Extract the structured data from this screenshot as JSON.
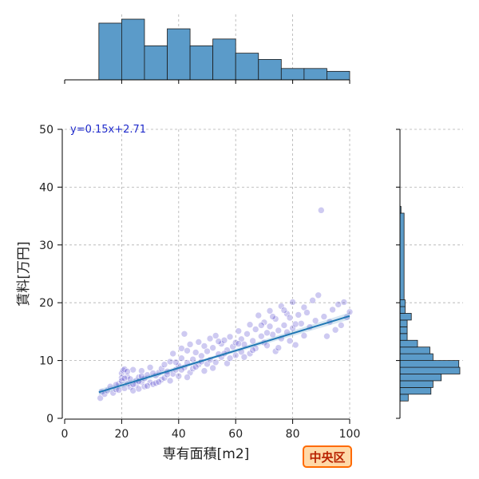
{
  "chart_data": {
    "type": "scatter",
    "title": "",
    "xlabel": "専有面積[m2]",
    "ylabel": "賃料[万円]",
    "xlim": [
      0,
      100
    ],
    "ylim": [
      0,
      50
    ],
    "xticks": [
      0,
      20,
      40,
      60,
      80,
      100
    ],
    "yticks": [
      0,
      10,
      20,
      30,
      40,
      50
    ],
    "grid": true,
    "point_color": "#3d2cc9",
    "regression": {
      "equation_label": "y=0.15x+2.71",
      "slope": 0.15,
      "intercept": 2.71,
      "x_range": [
        12,
        100
      ],
      "color": "#1f77b4"
    },
    "marginal_x_histogram": {
      "bin_edges": [
        12,
        20,
        28,
        36,
        44,
        52,
        60,
        68,
        76,
        84,
        92,
        100
      ],
      "counts": [
        100,
        107,
        60,
        90,
        60,
        72,
        47,
        36,
        20,
        20,
        15
      ],
      "color": "#5b9bc9"
    },
    "marginal_y_histogram": {
      "bin_edges": [
        3,
        4.17,
        5.33,
        6.5,
        7.67,
        8.83,
        10,
        11.17,
        12.33,
        13.5,
        14.67,
        15.83,
        17,
        18.17,
        19.33,
        20.5,
        35.5,
        36.67
      ],
      "counts": [
        8,
        30,
        32,
        40,
        58,
        57,
        32,
        29,
        17,
        7,
        7,
        7,
        11,
        5,
        5,
        4,
        1
      ],
      "color": "#5b9bc9"
    },
    "points": [
      [
        12.5,
        3.5
      ],
      [
        13,
        4.6
      ],
      [
        14,
        4.2
      ],
      [
        15,
        4.8
      ],
      [
        16,
        5.5
      ],
      [
        17,
        4.4
      ],
      [
        18,
        5
      ],
      [
        19,
        6
      ],
      [
        20,
        7.8
      ],
      [
        20,
        7
      ],
      [
        20,
        6.5
      ],
      [
        20.5,
        8.3
      ],
      [
        21,
        5.2
      ],
      [
        21,
        8.5
      ],
      [
        22,
        6
      ],
      [
        22,
        7.2
      ],
      [
        23,
        5.4
      ],
      [
        23,
        6.8
      ],
      [
        24,
        4.8
      ],
      [
        24,
        8.4
      ],
      [
        25,
        5.8
      ],
      [
        25,
        6.5
      ],
      [
        26,
        7.1
      ],
      [
        26,
        5.1
      ],
      [
        27,
        6.3
      ],
      [
        27,
        8.2
      ],
      [
        28,
        6.9
      ],
      [
        28,
        5.5
      ],
      [
        29,
        7.5
      ],
      [
        30,
        6.2
      ],
      [
        30,
        8.8
      ],
      [
        31,
        5.9
      ],
      [
        32,
        7.4
      ],
      [
        32,
        6.1
      ],
      [
        33,
        7.9
      ],
      [
        34,
        6.7
      ],
      [
        34,
        8.6
      ],
      [
        35,
        9.3
      ],
      [
        35,
        7
      ],
      [
        36,
        8.1
      ],
      [
        37,
        6.5
      ],
      [
        37,
        9.8
      ],
      [
        38,
        7.7
      ],
      [
        38,
        11.2
      ],
      [
        39,
        8.4
      ],
      [
        40,
        9.1
      ],
      [
        40,
        7.3
      ],
      [
        41,
        12.1
      ],
      [
        41,
        10.4
      ],
      [
        42,
        8.8
      ],
      [
        42,
        14.6
      ],
      [
        43,
        9.6
      ],
      [
        43,
        11.7
      ],
      [
        44,
        7.9
      ],
      [
        44,
        12.8
      ],
      [
        45,
        10.2
      ],
      [
        45,
        8.6
      ],
      [
        46,
        11.4
      ],
      [
        47,
        9.3
      ],
      [
        47,
        13.2
      ],
      [
        48,
        10.8
      ],
      [
        49,
        8.2
      ],
      [
        49,
        12.5
      ],
      [
        50,
        11.6
      ],
      [
        50,
        9.4
      ],
      [
        51,
        13.8
      ],
      [
        51,
        10.1
      ],
      [
        52,
        12.2
      ],
      [
        53,
        9.7
      ],
      [
        53,
        14.3
      ],
      [
        54,
        11.1
      ],
      [
        55,
        12.9
      ],
      [
        55,
        10.6
      ],
      [
        56,
        13.5
      ],
      [
        57,
        11.8
      ],
      [
        57,
        9.5
      ],
      [
        58,
        14.1
      ],
      [
        59,
        12.4
      ],
      [
        60,
        13.1
      ],
      [
        60,
        10.9
      ],
      [
        61,
        15.1
      ],
      [
        62,
        11.5
      ],
      [
        62,
        13.7
      ],
      [
        63,
        12.8
      ],
      [
        64,
        14.6
      ],
      [
        65,
        11.2
      ],
      [
        65,
        16.2
      ],
      [
        66,
        13.4
      ],
      [
        67,
        15.4
      ],
      [
        67,
        12.1
      ],
      [
        68,
        17.8
      ],
      [
        69,
        14.2
      ],
      [
        70,
        13.1
      ],
      [
        70,
        16.6
      ],
      [
        71,
        12.6
      ],
      [
        72,
        15.9
      ],
      [
        72,
        18.6
      ],
      [
        73,
        14.5
      ],
      [
        74,
        11.6
      ],
      [
        74,
        17.2
      ],
      [
        75,
        15.2
      ],
      [
        76,
        13.8
      ],
      [
        76,
        19.4
      ],
      [
        77,
        16.1
      ],
      [
        78,
        14.9
      ],
      [
        78,
        18.1
      ],
      [
        79,
        17.4
      ],
      [
        80,
        15.6
      ],
      [
        80,
        20.1
      ],
      [
        81,
        12.7
      ],
      [
        82,
        17.9
      ],
      [
        83,
        16.4
      ],
      [
        84,
        14.3
      ],
      [
        84,
        19.2
      ],
      [
        85,
        18.3
      ],
      [
        86,
        15.8
      ],
      [
        87,
        20.4
      ],
      [
        88,
        16.9
      ],
      [
        89,
        21.3
      ],
      [
        90,
        36
      ],
      [
        91,
        17.6
      ],
      [
        92,
        14.2
      ],
      [
        93,
        16.7
      ],
      [
        94,
        18.8
      ],
      [
        95,
        15.3
      ],
      [
        96,
        19.7
      ],
      [
        97,
        16.1
      ],
      [
        98,
        20.1
      ],
      [
        99,
        17.5
      ],
      [
        100,
        18.4
      ],
      [
        18,
        5.8
      ],
      [
        19,
        4.9
      ],
      [
        21,
        6.9
      ],
      [
        22,
        8.1
      ],
      [
        24,
        5.9
      ],
      [
        26,
        6.4
      ],
      [
        27,
        7.3
      ],
      [
        29,
        5.6
      ],
      [
        31,
        7.8
      ],
      [
        33,
        6.3
      ],
      [
        36,
        7.6
      ],
      [
        39,
        9.7
      ],
      [
        41,
        8.4
      ],
      [
        43,
        7.1
      ],
      [
        46,
        8.9
      ],
      [
        48,
        9.8
      ],
      [
        52,
        8.7
      ],
      [
        54,
        13.3
      ],
      [
        56,
        11.2
      ],
      [
        58,
        10.4
      ],
      [
        61,
        12.9
      ],
      [
        63,
        10.6
      ],
      [
        66,
        11.8
      ],
      [
        69,
        16.1
      ],
      [
        71,
        14.8
      ],
      [
        73,
        17.6
      ],
      [
        75,
        12.2
      ],
      [
        77,
        18.7
      ],
      [
        79,
        13.4
      ],
      [
        81,
        16.3
      ]
    ]
  },
  "badge": {
    "label": "中央区"
  }
}
